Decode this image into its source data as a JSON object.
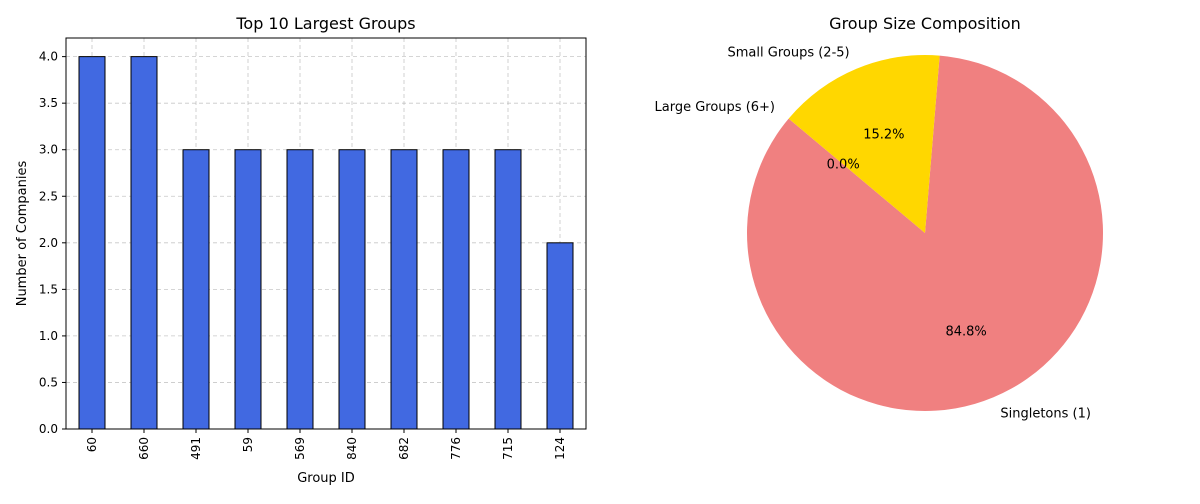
{
  "chart_data": [
    {
      "type": "bar",
      "title": "Top 10 Largest Groups",
      "xlabel": "Group ID",
      "ylabel": "Number of Companies",
      "categories": [
        "60",
        "660",
        "491",
        "59",
        "569",
        "840",
        "682",
        "776",
        "715",
        "124"
      ],
      "values": [
        4,
        4,
        3,
        3,
        3,
        3,
        3,
        3,
        3,
        2
      ],
      "ylim": [
        0,
        4.2
      ],
      "yticks": [
        "0.0",
        "0.5",
        "1.0",
        "1.5",
        "2.0",
        "2.5",
        "3.0",
        "3.5",
        "4.0"
      ],
      "grid": true,
      "bar_color": "#4169E1",
      "edge_color": "#000000"
    },
    {
      "type": "pie",
      "title": "Group Size Composition",
      "slices": [
        {
          "label": "Singletons (1)",
          "value": 84.8,
          "pct_label": "84.8%",
          "color": "#F08080"
        },
        {
          "label": "Small Groups (2-5)",
          "value": 15.2,
          "pct_label": "15.2%",
          "color": "#FFD700"
        },
        {
          "label": "Large Groups (6+)",
          "value": 0.0,
          "pct_label": "0.0%",
          "color": "#4169E1"
        }
      ]
    }
  ]
}
